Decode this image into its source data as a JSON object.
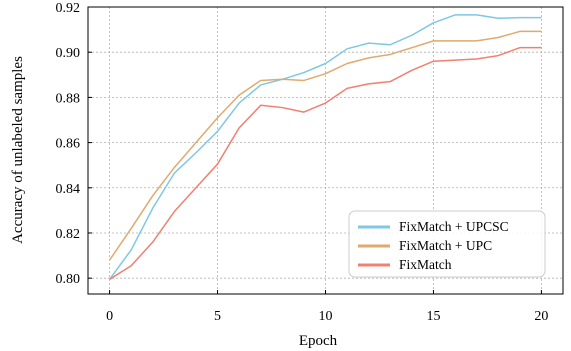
{
  "chart_data": {
    "type": "line",
    "xlabel": "Epoch",
    "ylabel": "Accuracy of unlabeled samples",
    "xlim": [
      -1,
      21
    ],
    "ylim": [
      0.793,
      0.92
    ],
    "x_ticks": [
      0,
      5,
      10,
      15,
      20
    ],
    "y_ticks": [
      0.8,
      0.82,
      0.84,
      0.86,
      0.88,
      0.9,
      0.92
    ],
    "x_tick_labels": [
      "0",
      "5",
      "10",
      "15",
      "20"
    ],
    "y_tick_labels": [
      "0.80",
      "0.82",
      "0.84",
      "0.86",
      "0.88",
      "0.90",
      "0.92"
    ],
    "grid": true,
    "legend_position": "bottom-right",
    "x": [
      0,
      1,
      2,
      3,
      4,
      5,
      6,
      7,
      8,
      9,
      10,
      11,
      12,
      13,
      14,
      15,
      16,
      17,
      18,
      19,
      20
    ],
    "series": [
      {
        "name": "FixMatch + UPCSC",
        "color": "#7ec8e3",
        "values": [
          0.7995,
          0.8125,
          0.831,
          0.8465,
          0.8555,
          0.865,
          0.8775,
          0.8855,
          0.888,
          0.891,
          0.895,
          0.9015,
          0.904,
          0.9033,
          0.9075,
          0.913,
          0.9165,
          0.9165,
          0.915,
          0.9153,
          0.9153
        ]
      },
      {
        "name": "FixMatch + UPC",
        "color": "#e0a96d",
        "values": [
          0.808,
          0.822,
          0.8365,
          0.849,
          0.86,
          0.871,
          0.881,
          0.8875,
          0.888,
          0.8875,
          0.8905,
          0.895,
          0.8975,
          0.899,
          0.902,
          0.905,
          0.905,
          0.905,
          0.9065,
          0.9092,
          0.9092
        ]
      },
      {
        "name": "FixMatch",
        "color": "#f08070",
        "values": [
          0.7995,
          0.8055,
          0.816,
          0.8295,
          0.84,
          0.8505,
          0.8665,
          0.8765,
          0.8755,
          0.8735,
          0.8775,
          0.884,
          0.886,
          0.887,
          0.892,
          0.896,
          0.8965,
          0.897,
          0.8985,
          0.902,
          0.902
        ]
      }
    ]
  }
}
